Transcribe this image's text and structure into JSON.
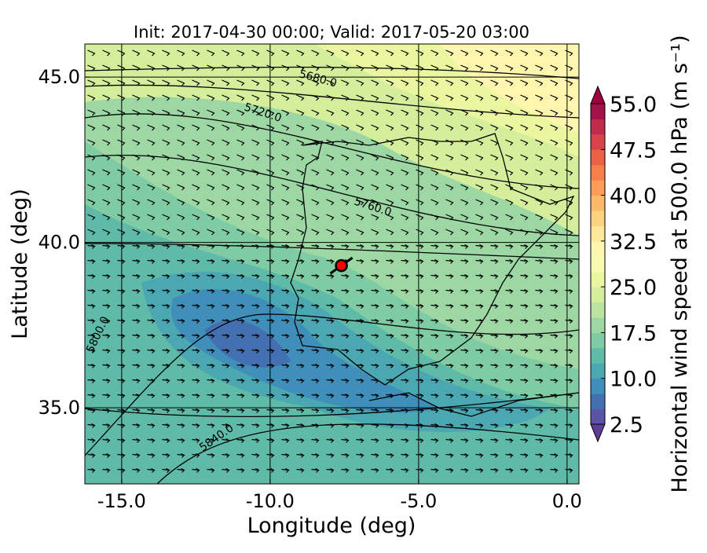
{
  "chart_data": {
    "type": "map",
    "title": "Init: 2017-04-30 00:00; Valid: 2017-05-20 03:00",
    "xlabel": "Longitude (deg)",
    "ylabel": "Latitude (deg)",
    "xlim": [
      -16.24,
      0.4
    ],
    "ylim": [
      32.7,
      46.0
    ],
    "xticks": [
      {
        "value": -15,
        "label": "-15.0"
      },
      {
        "value": -10,
        "label": "-10.0"
      },
      {
        "value": -5,
        "label": "-5.0"
      },
      {
        "value": 0,
        "label": "0.0"
      }
    ],
    "yticks": [
      {
        "value": 35,
        "label": "35.0"
      },
      {
        "value": 40,
        "label": "40.0"
      },
      {
        "value": 45,
        "label": "45.0"
      }
    ],
    "grid": true,
    "contour_labels": [
      {
        "value": 5680,
        "label": "5680.0"
      },
      {
        "value": 5720,
        "label": "5720.0"
      },
      {
        "value": 5760,
        "label": "5760.0"
      },
      {
        "value": 5800,
        "label": "5800.0"
      },
      {
        "value": 5840,
        "label": "5840.0"
      }
    ],
    "marker": {
      "lon": -7.6,
      "lat": 39.3,
      "color": "#ff0000"
    },
    "colorbar": {
      "label": "Horizontal wind speed at 500.0 hPa (m s⁻¹)",
      "lim": [
        2.5,
        55
      ],
      "ticks": [
        {
          "value": 2.5,
          "label": "2.5"
        },
        {
          "value": 10,
          "label": "10.0"
        },
        17.5,
        {
          "value": 25,
          "label": "25.0"
        },
        32.5,
        {
          "value": 40,
          "label": "40.0"
        },
        47.5,
        {
          "value": 55,
          "label": "55.0"
        }
      ],
      "colors": [
        "#5954a4",
        "#4470b1",
        "#3f8fba",
        "#4ba7b1",
        "#5fbaa8",
        "#7fcba4",
        "#9dd8a4",
        "#bbe4a0",
        "#d5ee9b",
        "#eaf7a0",
        "#f8fbb0",
        "#fef6af",
        "#fee89a",
        "#fdd27f",
        "#fdb96a",
        "#fb9d59",
        "#f67f4b",
        "#ea6145",
        "#d9444b",
        "#c02a4b",
        "#a2114a"
      ],
      "under_color": "#5e3c99",
      "over_color": "#9e0142"
    }
  }
}
